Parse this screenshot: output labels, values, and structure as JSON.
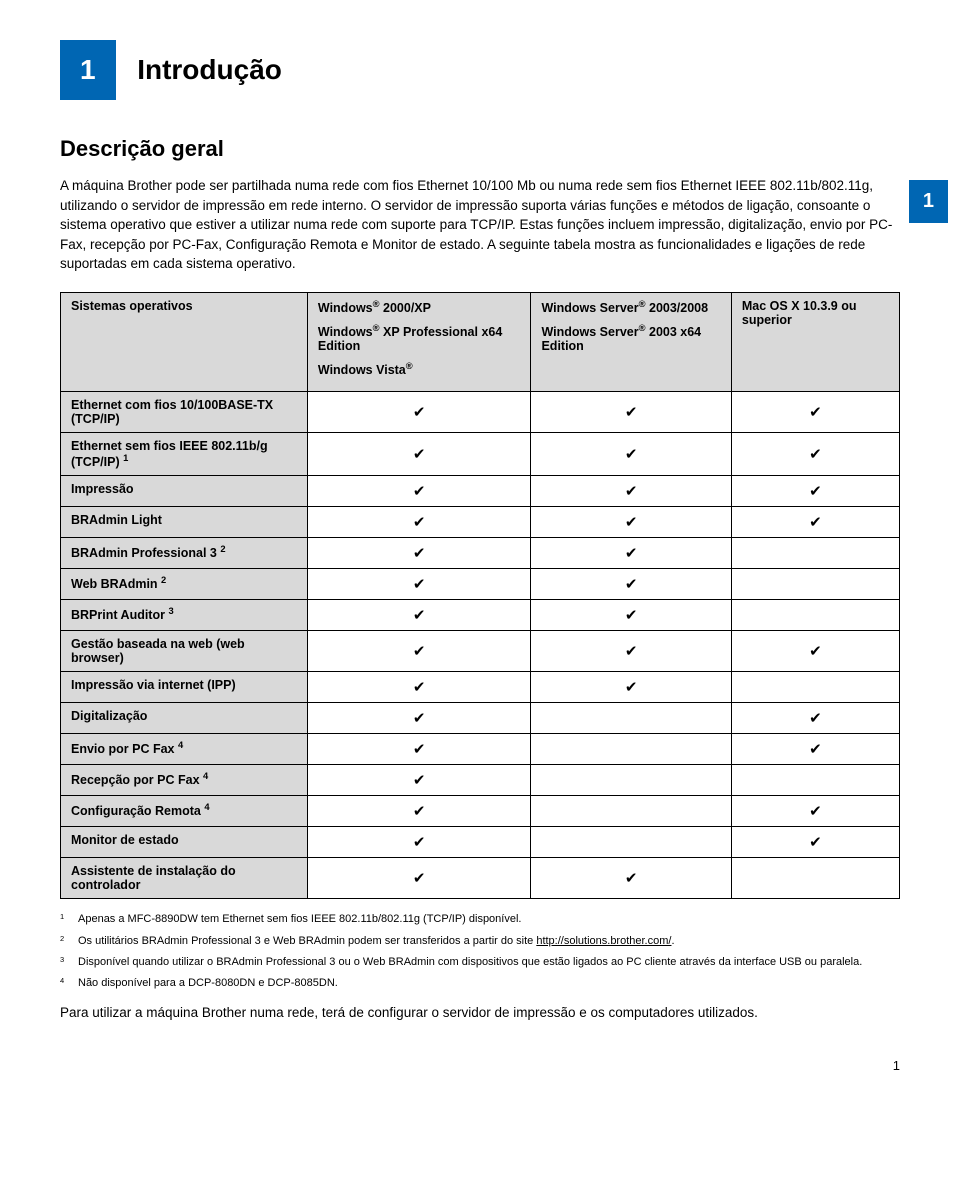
{
  "chapter_number": "1",
  "chapter_title": "Introdução",
  "side_tab": "1",
  "section_title": "Descrição geral",
  "intro_paragraph": "A máquina Brother pode ser partilhada numa rede com fios Ethernet 10/100 Mb ou numa rede sem fios Ethernet IEEE 802.11b/802.11g, utilizando o servidor de impressão em rede interno. O servidor de impressão suporta várias funções e métodos de ligação, consoante o sistema operativo que estiver a utilizar numa rede com suporte para TCP/IP. Estas funções incluem impressão, digitalização, envio por PC-Fax, recepção por PC-Fax, Configuração Remota e Monitor de estado. A seguinte tabela mostra as funcionalidades e ligações de rede suportadas em cada sistema operativo.",
  "table": {
    "header": {
      "col0": "Sistemas operativos",
      "col1_lines": [
        "Windows® 2000/XP",
        "Windows® XP Professional x64 Edition",
        "Windows Vista®"
      ],
      "col2_lines": [
        "Windows Server® 2003/2008",
        "Windows Server® 2003 x64 Edition"
      ],
      "col3_lines": [
        "Mac OS X 10.3.9 ou superior"
      ]
    },
    "rows": [
      {
        "label": "Ethernet com fios 10/100BASE-TX (TCP/IP)",
        "sup": "",
        "c1": "✔",
        "c2": "✔",
        "c3": "✔"
      },
      {
        "label": "Ethernet sem fios IEEE 802.11b/g (TCP/IP)",
        "sup": "1",
        "c1": "✔",
        "c2": "✔",
        "c3": "✔"
      },
      {
        "label": "Impressão",
        "sup": "",
        "c1": "✔",
        "c2": "✔",
        "c3": "✔"
      },
      {
        "label": "BRAdmin Light",
        "sup": "",
        "c1": "✔",
        "c2": "✔",
        "c3": "✔"
      },
      {
        "label": "BRAdmin Professional 3",
        "sup": "2",
        "c1": "✔",
        "c2": "✔",
        "c3": ""
      },
      {
        "label": "Web BRAdmin",
        "sup": "2",
        "c1": "✔",
        "c2": "✔",
        "c3": ""
      },
      {
        "label": "BRPrint Auditor",
        "sup": "3",
        "c1": "✔",
        "c2": "✔",
        "c3": ""
      },
      {
        "label": "Gestão baseada na web (web browser)",
        "sup": "",
        "c1": "✔",
        "c2": "✔",
        "c3": "✔"
      },
      {
        "label": "Impressão via internet (IPP)",
        "sup": "",
        "c1": "✔",
        "c2": "✔",
        "c3": ""
      },
      {
        "label": "Digitalização",
        "sup": "",
        "c1": "✔",
        "c2": "",
        "c3": "✔"
      },
      {
        "label": "Envio por PC Fax",
        "sup": "4",
        "c1": "✔",
        "c2": "",
        "c3": "✔"
      },
      {
        "label": "Recepção por PC Fax",
        "sup": "4",
        "c1": "✔",
        "c2": "",
        "c3": ""
      },
      {
        "label": "Configuração Remota",
        "sup": "4",
        "c1": "✔",
        "c2": "",
        "c3": "✔"
      },
      {
        "label": "Monitor de estado",
        "sup": "",
        "c1": "✔",
        "c2": "",
        "c3": "✔"
      },
      {
        "label": "Assistente de instalação do controlador",
        "sup": "",
        "c1": "✔",
        "c2": "✔",
        "c3": ""
      }
    ]
  },
  "footnotes": [
    {
      "num": "1",
      "text": "Apenas a MFC-8890DW tem Ethernet sem fios IEEE 802.11b/802.11g (TCP/IP) disponível."
    },
    {
      "num": "2",
      "text": "Os utilitários BRAdmin Professional 3 e Web BRAdmin podem ser transferidos a partir do site ",
      "link": "http://solutions.brother.com/",
      "suffix": "."
    },
    {
      "num": "3",
      "text": "Disponível quando utilizar o BRAdmin Professional 3 ou o Web BRAdmin com dispositivos que estão ligados ao PC cliente através da interface USB ou paralela."
    },
    {
      "num": "4",
      "text": "Não disponível para a DCP-8080DN e DCP-8085DN."
    }
  ],
  "closing_paragraph": "Para utilizar a máquina Brother numa rede, terá de configurar o servidor de impressão e os computadores utilizados.",
  "page_number": "1"
}
